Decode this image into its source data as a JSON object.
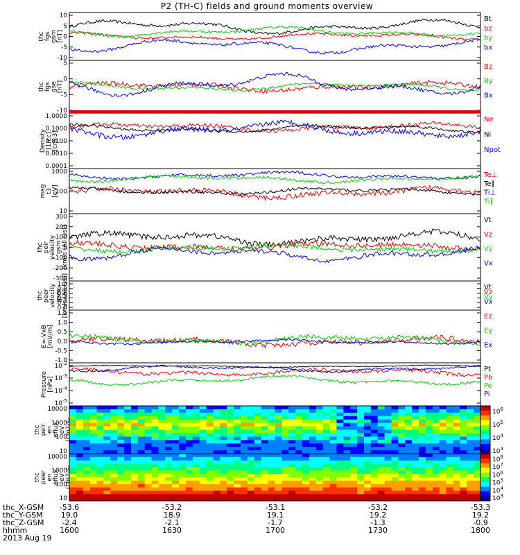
{
  "title": "P2 (TH-C) fields and ground moments overview",
  "date_label": "2013 Aug 19",
  "colors": {
    "black": "#000000",
    "red": "#e00000",
    "green": "#00cc00",
    "blue": "#0000cc"
  },
  "chart_data": [
    {
      "type": "line",
      "id": "fgs_gsm",
      "ylabel": [
        "thc",
        "fgs",
        "gsm",
        "[nT]"
      ],
      "yticks": [
        "10",
        "5",
        "0",
        "-5",
        "-10"
      ],
      "ylim": [
        -10,
        10
      ],
      "scale": "linear",
      "series": [
        {
          "name": "Bt",
          "color": "#000000",
          "base": 4,
          "amp": 3,
          "noise": 0.6
        },
        {
          "name": "bz",
          "color": "#e00000",
          "base": 0,
          "amp": 1.5,
          "noise": 0.5
        },
        {
          "name": "by",
          "color": "#00cc00",
          "base": 2,
          "amp": 2,
          "noise": 0.5
        },
        {
          "name": "bx",
          "color": "#0000cc",
          "base": -4,
          "amp": 3,
          "noise": 0.6
        }
      ]
    },
    {
      "type": "line",
      "id": "fgs_gse",
      "ylabel": [
        "thc",
        "fgs",
        "gse",
        "[nT]"
      ],
      "yticks": [
        "5",
        "0",
        "-5",
        "-10"
      ],
      "ylim": [
        -12,
        12
      ],
      "scale": "linear",
      "series": [
        {
          "name": "Bz",
          "color": "#e00000",
          "base": 0,
          "amp": 2,
          "noise": 1.0
        },
        {
          "name": "By",
          "color": "#00cc00",
          "base": 0,
          "amp": 2,
          "noise": 0.5
        },
        {
          "name": "Bx",
          "color": "#0000cc",
          "base": 1,
          "amp": 5,
          "noise": 0.8
        }
      ]
    },
    {
      "type": "line",
      "id": "density",
      "ylabel": [
        "Density",
        "[1/cc]",
        "[cm-3]"
      ],
      "yticks": [
        "1.0000",
        "0.1000",
        "0.0100",
        "0.0010",
        "0.0001"
      ],
      "ylim": [
        -4,
        0.3
      ],
      "scale": "log",
      "series": [
        {
          "name": "Ne",
          "color": "#e00000",
          "base": -0.8,
          "amp": 0.3,
          "noise": 0.15
        },
        {
          "name": "Ni",
          "color": "#000000",
          "base": -0.9,
          "amp": 0.3,
          "noise": 0.1
        },
        {
          "name": "Npot",
          "color": "#0000cc",
          "base": -1.0,
          "amp": 0.6,
          "noise": 0.2
        }
      ]
    },
    {
      "type": "line",
      "id": "temperature",
      "ylabel": [
        "mag",
        "t3",
        "[eV]"
      ],
      "yticks": [
        "1000",
        "100",
        "10"
      ],
      "ylim": [
        0.8,
        3.4
      ],
      "scale": "log",
      "series": [
        {
          "name": "Te⊥",
          "color": "#e00000",
          "base": 2.0,
          "amp": 0.3,
          "noise": 0.15
        },
        {
          "name": "Te∥",
          "color": "#000000",
          "base": 2.1,
          "amp": 0.2,
          "noise": 0.08
        },
        {
          "name": "Ti⊥",
          "color": "#0000cc",
          "base": 3.0,
          "amp": 0.2,
          "noise": 0.08
        },
        {
          "name": "Ti∥",
          "color": "#00cc00",
          "base": 2.8,
          "amp": 0.2,
          "noise": 0.08
        }
      ]
    },
    {
      "type": "line",
      "id": "peir_velocity",
      "ylabel": [
        "thc",
        "peir",
        "velocity",
        "gsm",
        "[km/s (All Qs)]"
      ],
      "yticks": [
        "300",
        "200",
        "100",
        "0",
        "-100",
        "-200",
        "-300"
      ],
      "ylim": [
        -300,
        300
      ],
      "scale": "linear",
      "series": [
        {
          "name": "Vt",
          "color": "#000000",
          "base": 80,
          "amp": 60,
          "noise": 25
        },
        {
          "name": "Vz",
          "color": "#e00000",
          "base": 10,
          "amp": 30,
          "noise": 25
        },
        {
          "name": "Vy",
          "color": "#00cc00",
          "base": -10,
          "amp": 30,
          "noise": 20
        },
        {
          "name": "Vx",
          "color": "#0000cc",
          "base": -60,
          "amp": 60,
          "noise": 20
        }
      ]
    },
    {
      "type": "line",
      "id": "peer_velocity",
      "ylabel": [
        "thc",
        "peer",
        "velocity",
        "gsm",
        "[km/s (All Qs)]"
      ],
      "yticks": [
        "1.0",
        "0.8",
        "0.6",
        "0.4",
        "0.2",
        "0.0"
      ],
      "ylim": [
        0,
        1
      ],
      "scale": "linear",
      "series": [
        {
          "name": "Vt",
          "color": "#000000",
          "empty": true
        },
        {
          "name": "Vz",
          "color": "#e00000",
          "empty": true
        },
        {
          "name": "Vy",
          "color": "#00cc00",
          "empty": true
        },
        {
          "name": "Vx",
          "color": "#0000cc",
          "empty": true
        }
      ]
    },
    {
      "type": "line",
      "id": "efield",
      "ylabel": [
        "E=-VxB",
        "[mV/m]"
      ],
      "yticks": [
        "1.5",
        "1.0",
        "0.5",
        "0.0",
        "-0.5",
        "-1.0"
      ],
      "ylim": [
        -1,
        1.5
      ],
      "scale": "linear",
      "series": [
        {
          "name": "Ez",
          "color": "#e00000",
          "base": 0.0,
          "amp": 0.2,
          "noise": 0.12
        },
        {
          "name": "Ey",
          "color": "#00cc00",
          "base": 0.1,
          "amp": 0.2,
          "noise": 0.1
        },
        {
          "name": "Ex",
          "color": "#0000cc",
          "base": 0.0,
          "amp": 0.1,
          "noise": 0.05
        }
      ]
    },
    {
      "type": "line",
      "id": "pressure",
      "ylabel": [
        "Pressure",
        "[nPa]"
      ],
      "yticks": [
        "10^-2",
        "10^-3",
        "10^-4",
        "10^-5"
      ],
      "ylim": [
        -5.2,
        -1.5
      ],
      "scale": "log",
      "series": [
        {
          "name": "Pt",
          "color": "#000000",
          "base": -1.8,
          "amp": 0.1,
          "noise": 0.03
        },
        {
          "name": "Pb",
          "color": "#e00000",
          "base": -2.3,
          "amp": 0.3,
          "noise": 0.15
        },
        {
          "name": "Pe",
          "color": "#00cc00",
          "base": -3.0,
          "amp": 0.4,
          "noise": 0.1
        },
        {
          "name": "Pi",
          "color": "#0000cc",
          "base": -2.0,
          "amp": 0.3,
          "noise": 0.08
        }
      ]
    },
    {
      "type": "heatmap",
      "id": "peir_spec",
      "ylabel": [
        "thc",
        "peir",
        "en",
        "eflux",
        "eV",
        "(cm2-s-",
        "sr-eV)"
      ],
      "yticks": [
        "10000",
        "1000",
        "100",
        "10"
      ],
      "colorbar_ticks": [
        "10^6",
        "10^5",
        "10^4",
        "10^3"
      ]
    },
    {
      "type": "heatmap",
      "id": "peer_spec",
      "ylabel": [
        "thc",
        "peer",
        "en",
        "eflux",
        "eV",
        "(cm2-s-",
        "sr-eV)"
      ],
      "yticks": [
        "10000",
        "1000",
        "100",
        "10"
      ],
      "colorbar_ticks": [
        "10^8",
        "10^7",
        "10^6",
        "10^5",
        "10^4",
        "10^3"
      ]
    }
  ],
  "footer": {
    "rows": [
      {
        "label": "thc_X-GSM",
        "values": [
          "-53.6",
          "-53.2",
          "-53.1",
          "-53.2",
          "-53.3"
        ]
      },
      {
        "label": "thc_Y-GSM",
        "values": [
          "19.0",
          "18.9",
          "19.1",
          "19.2",
          "19.2"
        ]
      },
      {
        "label": "thc_Z-GSM",
        "values": [
          "-2.4",
          "-2.1",
          "-1.7",
          "-1.3",
          "-0.9"
        ]
      },
      {
        "label": "hhmm",
        "values": [
          "1600",
          "1630",
          "1700",
          "1730",
          "1800"
        ]
      }
    ]
  }
}
